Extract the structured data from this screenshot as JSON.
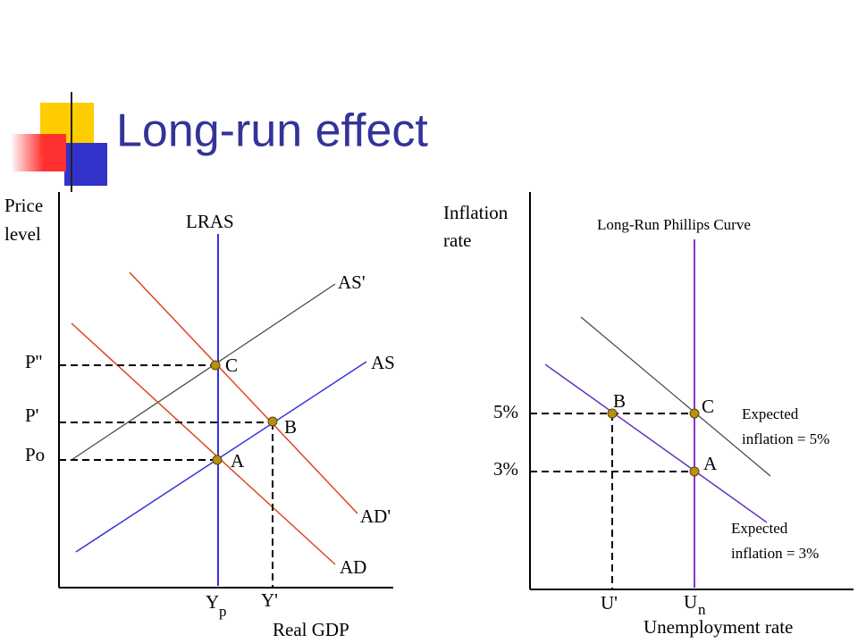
{
  "title": "Long-run effect",
  "left_diagram": {
    "y_axis_label": [
      "Price",
      "level"
    ],
    "x_axis_label": "Real GDP",
    "curves": {
      "lras": "LRAS",
      "as_shifted": "AS'",
      "as": "AS",
      "ad_shifted": "AD'",
      "ad": "AD"
    },
    "price_labels": [
      "P''",
      "P'",
      "Po"
    ],
    "points": [
      "C",
      "B",
      "A"
    ],
    "output_labels": {
      "potential": {
        "main": "Y",
        "sub": "p"
      },
      "actual": "Y'"
    }
  },
  "right_diagram": {
    "y_axis_label": [
      "Inflation",
      "rate"
    ],
    "x_axis_label": "Unemployment rate",
    "curve_title": "Long-Run Phillips Curve",
    "inflation_labels": [
      "5%",
      "3%"
    ],
    "points": [
      "B",
      "C",
      "A"
    ],
    "expected_high": [
      "Expected",
      "inflation = 5%"
    ],
    "expected_low": [
      "Expected",
      "inflation = 3%"
    ],
    "unemployment_labels": {
      "actual": "U'",
      "natural": {
        "main": "U",
        "sub": "n"
      }
    }
  }
}
